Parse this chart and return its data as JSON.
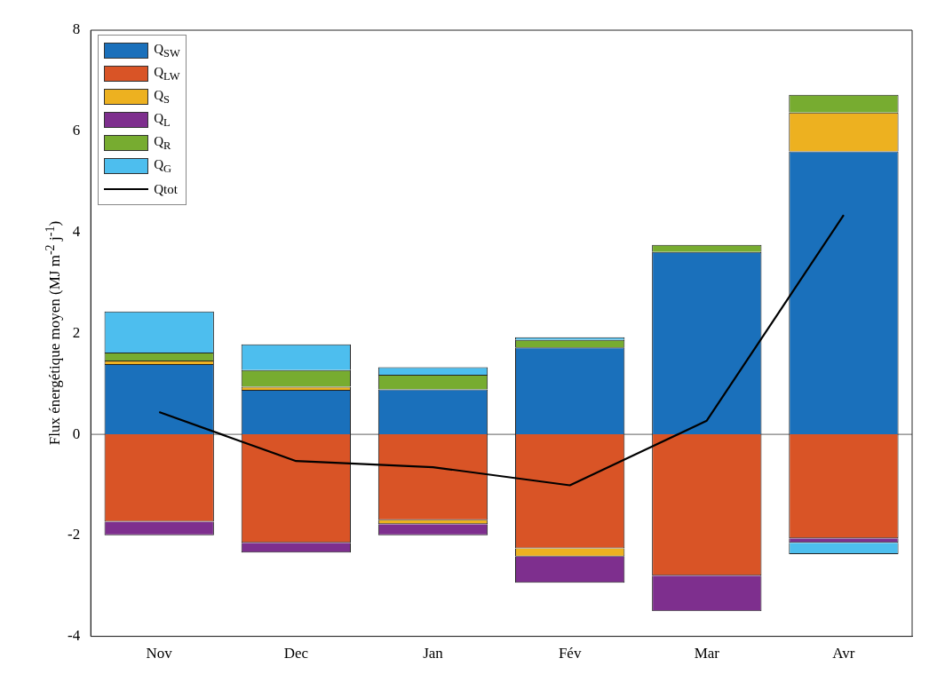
{
  "chart_data": {
    "type": "bar",
    "ylabel": "Flux énergétique moyen (MJ m$^{-2}$ j$^{-1}$)",
    "categories": [
      "Nov",
      "Dec",
      "Jan",
      "Fév",
      "Mar",
      "Avr"
    ],
    "stacked": true,
    "ylim": [
      -4,
      8
    ],
    "yticks": [
      -4,
      -2,
      0,
      2,
      4,
      6,
      8
    ],
    "grid": false,
    "legend": "top left",
    "marker": "none",
    "ref_lines": [
      {
        "axis": "y",
        "value": 0,
        "color": "#808080"
      }
    ],
    "series": [
      {
        "name": "Q$_{SW}$",
        "color": "#1a70bb",
        "values": [
          1.39,
          0.88,
          0.89,
          1.72,
          3.61,
          5.6
        ]
      },
      {
        "name": "Q$_{LW}$",
        "color": "#d95426",
        "values": [
          -1.73,
          -2.15,
          -1.7,
          -2.26,
          -2.8,
          -2.06
        ]
      },
      {
        "name": "Q$_{S}$",
        "color": "#edb120",
        "values": [
          0.07,
          0.06,
          -0.08,
          -0.16,
          0,
          0.77
        ]
      },
      {
        "name": "Q$_{L}$",
        "color": "#7e2f8e",
        "values": [
          -0.27,
          -0.19,
          -0.22,
          -0.52,
          -0.7,
          -0.09
        ]
      },
      {
        "name": "Q$_{R}$",
        "color": "#77ac30",
        "values": [
          0.16,
          0.33,
          0.29,
          0.15,
          0.14,
          0.35
        ]
      },
      {
        "name": "Q$_{G}$",
        "color": "#4dbeee",
        "values": [
          0.81,
          0.51,
          0.15,
          0.05,
          0,
          -0.22
        ]
      },
      {
        "name": "Qtot",
        "type": "line",
        "color": "#000000",
        "values": [
          0.44,
          -0.53,
          -0.65,
          -1.01,
          0.27,
          4.34
        ]
      }
    ]
  }
}
